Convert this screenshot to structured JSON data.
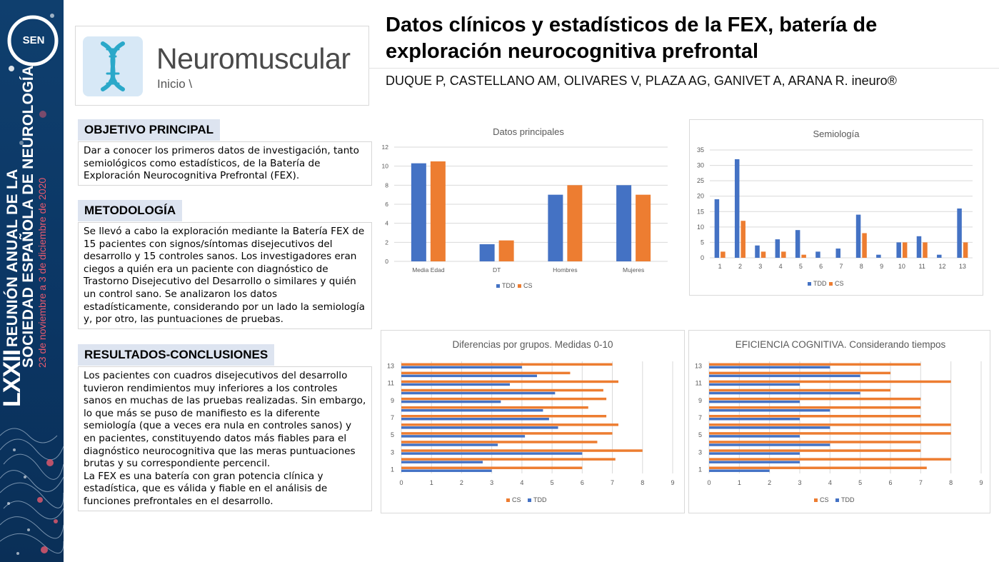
{
  "sidebar": {
    "logo_text": "SEN",
    "congress_number": "LXXII",
    "line1": "REUNIÓN ANUAL DE LA",
    "line2": "SOCIEDAD ESPAÑOLA DE NEUROLOGÍA",
    "dates": "23 de noviembre a 3 de diciembre de 2020"
  },
  "logo": {
    "brand": "Neuromuscular",
    "breadcrumb": "Inicio \\"
  },
  "title": "Datos clínicos y estadísticos de la FEX, batería de exploración neurocognitiva prefrontal",
  "authors": "DUQUE P, CASTELLANO AM, OLIVARES V, PLAZA AG, GANIVET A, ARANA R. ineuro®",
  "sections": {
    "objetivo": {
      "heading": "OBJETIVO PRINCIPAL",
      "body": "Dar a conocer los primeros datos de investigación, tanto semiológicos como estadísticos, de la Batería de Exploración Neurocognitiva Prefrontal (FEX)."
    },
    "metodologia": {
      "heading": "METODOLOGÍA",
      "body": "Se llevó a cabo la exploración mediante la Batería FEX de 15 pacientes con signos/síntomas disejecutivos del desarrollo y 15 controles sanos. Los investigadores eran ciegos a quién era un paciente con diagnóstico de Trastorno Disejecutivo del Desarrollo o similares y quién un control sano. Se analizaron los datos estadísticamente, considerando por un lado la semiología y, por otro, las puntuaciones de pruebas."
    },
    "resultados": {
      "heading": "RESULTADOS-CONCLUSIONES",
      "body1": "Los pacientes con cuadros disejecutivos del desarrollo tuvieron rendimientos muy inferiores a los controles sanos en muchas de las pruebas realizadas. Sin embargo, lo que más se puso de manifiesto es la diferente semiología (que a veces era nula en controles sanos) y en pacientes, constituyendo datos más fiables para el diagnóstico neurocognitiva que las meras puntuaciones brutas y su correspondiente percencil.",
      "body2": "La FEX es una batería con gran potencia clínica y estadística, que es válida y fiable en el análisis de funciones prefrontales en el desarrollo."
    }
  },
  "colors": {
    "tdd": "#4472c4",
    "cs": "#ed7d31",
    "sidebar": "#0b3664",
    "section_head_bg": "#dde4f0"
  },
  "chart_data": [
    {
      "id": "principales",
      "type": "bar",
      "title": "Datos principales",
      "categories": [
        "Media Edad",
        "DT",
        "Hombres",
        "Mujeres"
      ],
      "series": [
        {
          "name": "TDD",
          "values": [
            10.3,
            1.8,
            7,
            8
          ]
        },
        {
          "name": "CS",
          "values": [
            10.5,
            2.2,
            8,
            7
          ]
        }
      ],
      "ylim": [
        0,
        12
      ],
      "yticks": [
        0,
        2,
        4,
        6,
        8,
        10,
        12
      ],
      "grid": true,
      "legend": "bottom"
    },
    {
      "id": "semiologia",
      "type": "bar",
      "title": "Semiología",
      "categories": [
        "1",
        "2",
        "3",
        "4",
        "5",
        "6",
        "7",
        "8",
        "9",
        "10",
        "11",
        "12",
        "13"
      ],
      "series": [
        {
          "name": "TDD",
          "values": [
            19,
            32,
            4,
            6,
            9,
            2,
            3,
            14,
            1,
            5,
            7,
            1,
            16
          ]
        },
        {
          "name": "CS",
          "values": [
            2,
            12,
            2,
            2,
            1,
            0,
            0,
            8,
            0,
            5,
            5,
            0,
            5
          ]
        }
      ],
      "ylim": [
        0,
        35
      ],
      "yticks": [
        0,
        5,
        10,
        15,
        20,
        25,
        30,
        35
      ],
      "grid": true,
      "legend": "bottom"
    },
    {
      "id": "diferencias",
      "type": "bar",
      "orientation": "horizontal",
      "title": "Diferencias por grupos.  Medidas 0-10",
      "categories": [
        "1",
        "2",
        "3",
        "4",
        "5",
        "6",
        "7",
        "8",
        "9",
        "10",
        "11",
        "12",
        "13"
      ],
      "ytick_labels": [
        "1",
        "",
        "3",
        "",
        "5",
        "",
        "7",
        "",
        "9",
        "",
        "11",
        "",
        "13"
      ],
      "series": [
        {
          "name": "CS",
          "values": [
            6,
            7.1,
            8,
            6.5,
            7,
            7.2,
            6.8,
            6.2,
            6.8,
            6.7,
            7.2,
            5.6,
            7
          ]
        },
        {
          "name": "TDD",
          "values": [
            3,
            2.7,
            6,
            3.2,
            4.1,
            5.2,
            4.9,
            4.7,
            3.3,
            5.1,
            3.6,
            4.5,
            4
          ]
        }
      ],
      "xlim": [
        0,
        9
      ],
      "xticks": [
        0,
        1,
        2,
        3,
        4,
        5,
        6,
        7,
        8,
        9
      ],
      "grid": true,
      "legend": "bottom"
    },
    {
      "id": "eficiencia",
      "type": "bar",
      "orientation": "horizontal",
      "title": "EFICIENCIA  COGNITIVA.  Considerando  tiempos",
      "categories": [
        "1",
        "2",
        "3",
        "4",
        "5",
        "6",
        "7",
        "8",
        "9",
        "10",
        "11",
        "12",
        "13"
      ],
      "ytick_labels": [
        "1",
        "",
        "3",
        "",
        "5",
        "",
        "7",
        "",
        "9",
        "",
        "11",
        "",
        "13"
      ],
      "series": [
        {
          "name": "CS",
          "values": [
            7.2,
            8,
            7,
            7,
            8,
            8,
            7,
            7,
            7,
            6,
            8,
            6,
            7
          ]
        },
        {
          "name": "TDD",
          "values": [
            2,
            3,
            3,
            4,
            3,
            4,
            3,
            4,
            3,
            5,
            3,
            5,
            4
          ]
        }
      ],
      "xlim": [
        0,
        9
      ],
      "xticks": [
        0,
        1,
        2,
        3,
        4,
        5,
        6,
        7,
        8,
        9
      ],
      "grid": true,
      "legend": "bottom"
    }
  ]
}
